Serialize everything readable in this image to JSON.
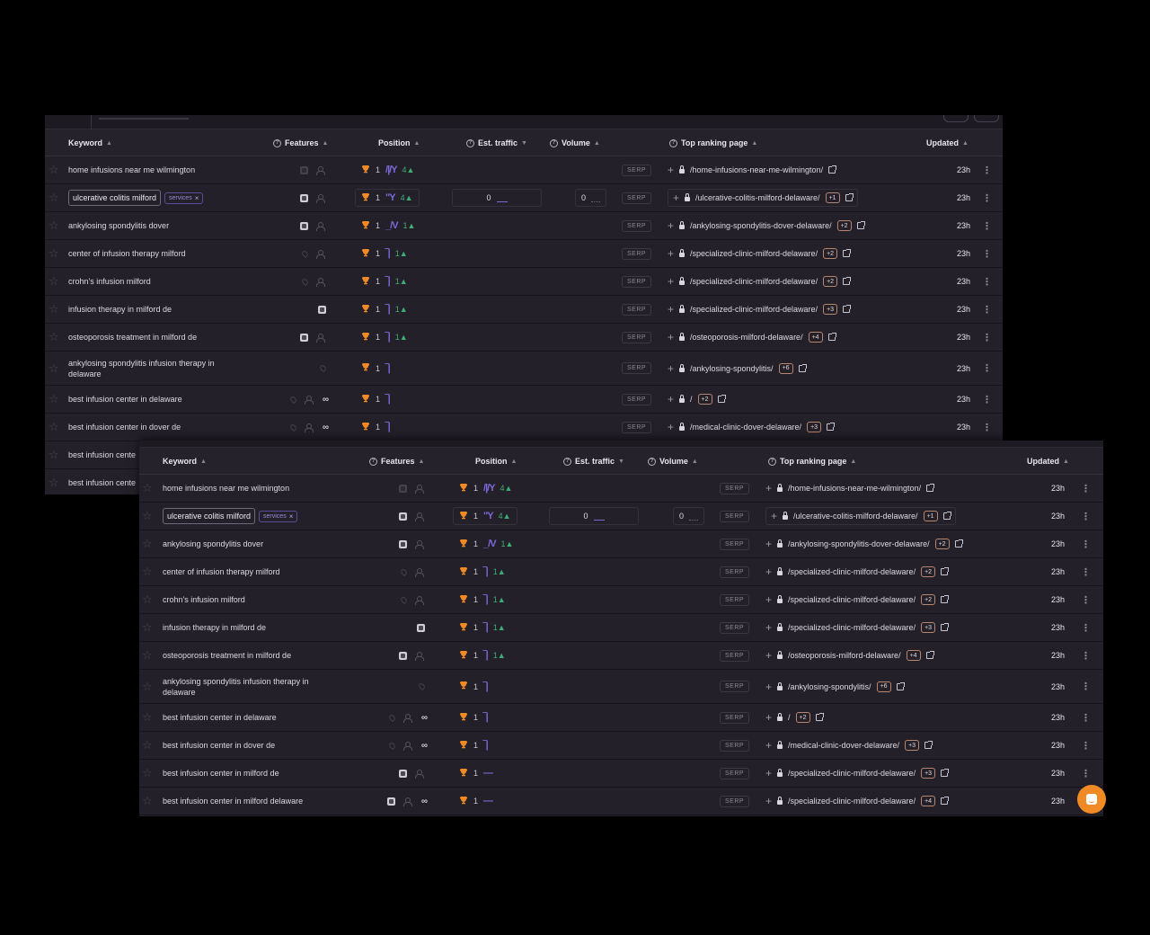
{
  "columns": {
    "keyword": "Keyword",
    "features": "Features",
    "position": "Position",
    "est_traffic": "Est. traffic",
    "volume": "Volume",
    "top_ranking_page": "Top ranking page",
    "updated": "Updated"
  },
  "sort_icons": {
    "keyword": "▲",
    "features": "▲",
    "position": "▲",
    "est_traffic": "▼",
    "volume": "▲",
    "top_ranking_page": "▲",
    "updated": "▲"
  },
  "help_icon": "?",
  "serp_label": "SERP",
  "colors": {
    "background": "#232029",
    "accent_purple": "#7a6ad8",
    "trophy_orange": "#f08a24",
    "delta_green": "#3fae74",
    "chat_fab": "#f08a24"
  },
  "back_panel": {
    "rows": [
      {
        "keyword": "home infusions near me wilmington",
        "features": [
          "ai-dim",
          "person"
        ],
        "position": "1",
        "spark": "/|/Y",
        "delta": "4▲",
        "page": "/home-infusions-near-me-wilmington/",
        "more": "",
        "updated": "23h"
      },
      {
        "keyword": "ulcerative colitis milford",
        "tag": "services",
        "tag_close": "×",
        "selected": true,
        "features": [
          "ai",
          "person"
        ],
        "position": "1",
        "spark": "\"Y",
        "delta": "4▲",
        "est_traffic": "0",
        "volume": "0",
        "page": "/ulcerative-colitis-milford-delaware/",
        "more": "+1",
        "updated": "23h"
      },
      {
        "keyword": "ankylosing spondylitis dover",
        "features": [
          "ai",
          "person"
        ],
        "position": "1",
        "spark": "_/V",
        "delta": "1▲",
        "page": "/ankylosing-spondylitis-dover-delaware/",
        "more": "+2",
        "updated": "23h"
      },
      {
        "keyword": "center of infusion therapy milford",
        "features": [
          "pin",
          "person"
        ],
        "position": "1",
        "spark": "‾|",
        "delta": "1▲",
        "page": "/specialized-clinic-milford-delaware/",
        "more": "+2",
        "updated": "23h"
      },
      {
        "keyword": "crohn's infusion milford",
        "features": [
          "pin",
          "person"
        ],
        "position": "1",
        "spark": "‾|",
        "delta": "1▲",
        "page": "/specialized-clinic-milford-delaware/",
        "more": "+2",
        "updated": "23h"
      },
      {
        "keyword": "infusion therapy in milford de",
        "features": [
          "ai"
        ],
        "position": "1",
        "spark": "‾|",
        "delta": "1▲",
        "page": "/specialized-clinic-milford-delaware/",
        "more": "+3",
        "updated": "23h"
      },
      {
        "keyword": "osteoporosis treatment in milford de",
        "features": [
          "ai",
          "person"
        ],
        "position": "1",
        "spark": "‾|",
        "delta": "1▲",
        "page": "/osteoporosis-milford-delaware/",
        "more": "+4",
        "updated": "23h"
      },
      {
        "keyword": "ankylosing spondylitis infusion therapy in delaware",
        "tall": true,
        "features": [
          "pin"
        ],
        "position": "1",
        "spark": "‾|",
        "delta": "",
        "page": "/ankylosing-spondylitis/",
        "more": "+6",
        "updated": "23h"
      },
      {
        "keyword": "best infusion center in delaware",
        "features": [
          "pin",
          "person",
          "link"
        ],
        "position": "1",
        "spark": "‾|",
        "delta": "",
        "page": "/",
        "more": "+2",
        "updated": "23h"
      },
      {
        "keyword": "best infusion center in dover de",
        "features": [
          "pin",
          "person",
          "link"
        ],
        "position": "1",
        "spark": "‾|",
        "delta": "",
        "page": "/medical-clinic-dover-delaware/",
        "more": "+3",
        "updated": "23h"
      },
      {
        "keyword": "best infusion cente",
        "features": [],
        "position": "",
        "spark": "",
        "delta": "",
        "page": "",
        "more": "",
        "updated": ""
      },
      {
        "keyword": "best infusion cente",
        "features": [],
        "position": "",
        "spark": "",
        "delta": "",
        "page": "",
        "more": "",
        "updated": ""
      }
    ]
  },
  "front_panel": {
    "rows": [
      {
        "keyword": "home infusions near me wilmington",
        "features": [
          "ai-dim",
          "person"
        ],
        "position": "1",
        "spark": "/|/Y",
        "delta": "4▲",
        "page": "/home-infusions-near-me-wilmington/",
        "more": "",
        "updated": "23h"
      },
      {
        "keyword": "ulcerative colitis milford",
        "tag": "services",
        "tag_close": "×",
        "selected": true,
        "features": [
          "ai",
          "person"
        ],
        "position": "1",
        "spark": "\"Y",
        "delta": "4▲",
        "est_traffic": "0",
        "volume": "0",
        "page": "/ulcerative-colitis-milford-delaware/",
        "more": "+1",
        "updated": "23h"
      },
      {
        "keyword": "ankylosing spondylitis dover",
        "features": [
          "ai",
          "person"
        ],
        "position": "1",
        "spark": "_/V",
        "delta": "1▲",
        "page": "/ankylosing-spondylitis-dover-delaware/",
        "more": "+2",
        "updated": "23h"
      },
      {
        "keyword": "center of infusion therapy milford",
        "features": [
          "pin",
          "person"
        ],
        "position": "1",
        "spark": "‾|",
        "delta": "1▲",
        "page": "/specialized-clinic-milford-delaware/",
        "more": "+2",
        "updated": "23h"
      },
      {
        "keyword": "crohn's infusion milford",
        "features": [
          "pin",
          "person"
        ],
        "position": "1",
        "spark": "‾|",
        "delta": "1▲",
        "page": "/specialized-clinic-milford-delaware/",
        "more": "+2",
        "updated": "23h"
      },
      {
        "keyword": "infusion therapy in milford de",
        "features": [
          "ai"
        ],
        "position": "1",
        "spark": "‾|",
        "delta": "1▲",
        "page": "/specialized-clinic-milford-delaware/",
        "more": "+3",
        "updated": "23h"
      },
      {
        "keyword": "osteoporosis treatment in milford de",
        "features": [
          "ai",
          "person"
        ],
        "position": "1",
        "spark": "‾|",
        "delta": "1▲",
        "page": "/osteoporosis-milford-delaware/",
        "more": "+4",
        "updated": "23h"
      },
      {
        "keyword": "ankylosing spondylitis infusion therapy in delaware",
        "tall": true,
        "features": [
          "pin"
        ],
        "position": "1",
        "spark": "‾|",
        "delta": "",
        "page": "/ankylosing-spondylitis/",
        "more": "+6",
        "updated": "23h"
      },
      {
        "keyword": "best infusion center in delaware",
        "features": [
          "pin",
          "person",
          "link"
        ],
        "position": "1",
        "spark": "‾|",
        "delta": "",
        "page": "/",
        "more": "+2",
        "updated": "23h"
      },
      {
        "keyword": "best infusion center in dover de",
        "features": [
          "pin",
          "person",
          "link"
        ],
        "position": "1",
        "spark": "‾|",
        "delta": "",
        "page": "/medical-clinic-dover-delaware/",
        "more": "+3",
        "updated": "23h"
      },
      {
        "keyword": "best infusion center in milford de",
        "features": [
          "ai",
          "person"
        ],
        "position": "1",
        "spark": "—",
        "delta": "",
        "page": "/specialized-clinic-milford-delaware/",
        "more": "+3",
        "updated": "23h"
      },
      {
        "keyword": "best infusion center in milford delaware",
        "features": [
          "ai",
          "person",
          "link"
        ],
        "position": "1",
        "spark": "—",
        "delta": "",
        "page": "/specialized-clinic-milford-delaware/",
        "more": "+4",
        "updated": "23h"
      }
    ]
  },
  "glyphs": {
    "star": "☆",
    "trophy": "🏆",
    "plus": "+",
    "kebab": "⋮",
    "link": "∞"
  }
}
